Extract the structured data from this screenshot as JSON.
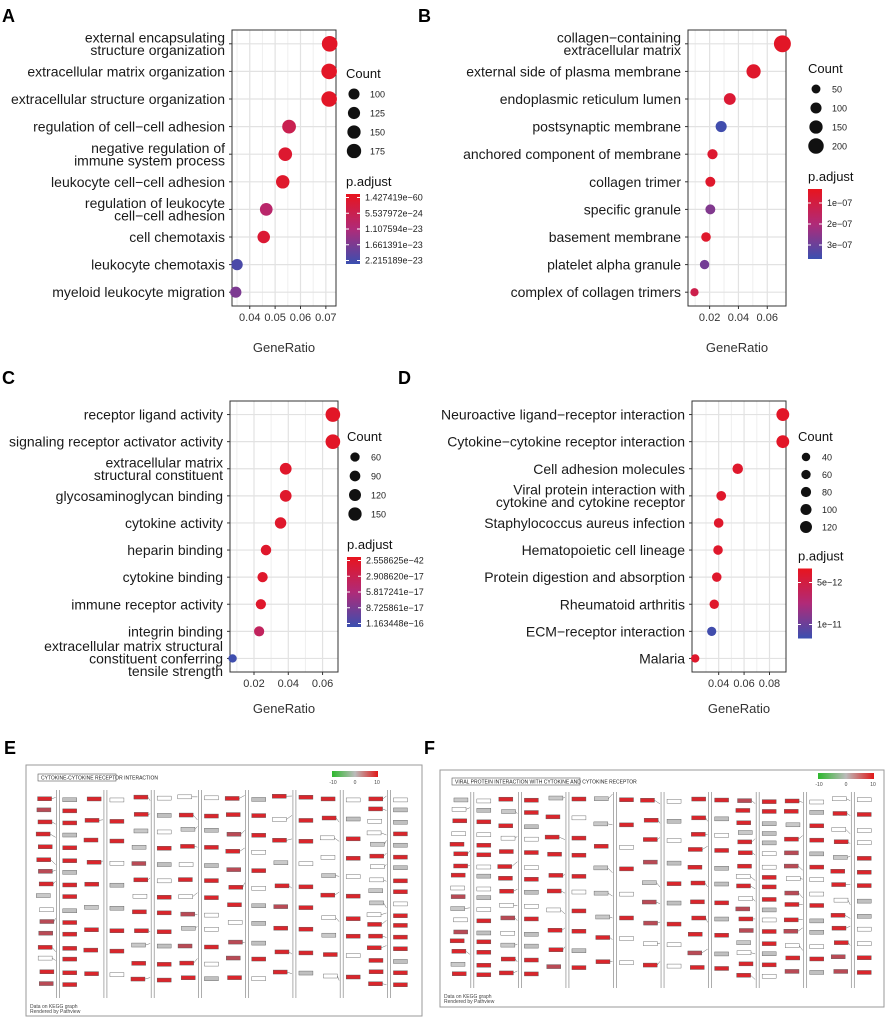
{
  "panels": [
    {
      "label": "A"
    },
    {
      "label": "B"
    },
    {
      "label": "C"
    },
    {
      "label": "D"
    },
    {
      "label": "E"
    },
    {
      "label": "F"
    }
  ],
  "chart_data": [
    {
      "panel": "A",
      "type": "scatter",
      "subtype": "dotplot",
      "xlabel": "GeneRatio",
      "xlim": [
        0.033,
        0.074
      ],
      "xticks": [
        0.04,
        0.05,
        0.06,
        0.07
      ],
      "xtick_labels": [
        "0.04",
        "0.05",
        "0.06",
        "0.07"
      ],
      "terms": [
        {
          "label": [
            "external encapsulating",
            "structure organization"
          ],
          "x": 0.0715,
          "count": 186,
          "p": 0.05
        },
        {
          "label": [
            "extracellular matrix organization"
          ],
          "x": 0.0713,
          "count": 185,
          "p": 0.05
        },
        {
          "label": [
            "extracellular structure organization"
          ],
          "x": 0.0713,
          "count": 185,
          "p": 0.05
        },
        {
          "label": [
            "regulation of cell−cell adhesion"
          ],
          "x": 0.0555,
          "count": 145,
          "p": 0.28
        },
        {
          "label": [
            "negative regulation of",
            "immune system process"
          ],
          "x": 0.054,
          "count": 142,
          "p": 0.1
        },
        {
          "label": [
            "leukocyte cell−cell adhesion"
          ],
          "x": 0.053,
          "count": 139,
          "p": 0.08
        },
        {
          "label": [
            "regulation of leukocyte",
            "cell−cell adhesion"
          ],
          "x": 0.0465,
          "count": 122,
          "p": 0.42
        },
        {
          "label": [
            "cell chemotaxis"
          ],
          "x": 0.0455,
          "count": 118,
          "p": 0.12
        },
        {
          "label": [
            "leukocyte chemotaxis"
          ],
          "x": 0.035,
          "count": 92,
          "p": 0.93
        },
        {
          "label": [
            "myeloid leukocyte migration"
          ],
          "x": 0.0345,
          "count": 90,
          "p": 0.72
        }
      ],
      "legend_size": {
        "title": "Count",
        "values": [
          100,
          125,
          150,
          175
        ],
        "labels": [
          "100",
          "125",
          "150",
          "175"
        ]
      },
      "legend_color": {
        "title": "p.adjust",
        "labels": [
          "1.427419e−60",
          "5.537972e−24",
          "1.107594e−23",
          "1.661391e−23",
          "2.215189e−23"
        ]
      }
    },
    {
      "panel": "B",
      "type": "scatter",
      "subtype": "dotplot",
      "xlabel": "GeneRatio",
      "xlim": [
        0.005,
        0.073
      ],
      "xticks": [
        0.02,
        0.04,
        0.06
      ],
      "xtick_labels": [
        "0.02",
        "0.04",
        "0.06"
      ],
      "terms": [
        {
          "label": [
            "collagen−containing",
            "extracellular matrix"
          ],
          "x": 0.0705,
          "count": 215,
          "p": 0.05
        },
        {
          "label": [
            "external side of plasma membrane"
          ],
          "x": 0.0505,
          "count": 155,
          "p": 0.08
        },
        {
          "label": [
            "endoplasmic reticulum lumen"
          ],
          "x": 0.034,
          "count": 103,
          "p": 0.12
        },
        {
          "label": [
            "postsynaptic membrane"
          ],
          "x": 0.028,
          "count": 87,
          "p": 0.97
        },
        {
          "label": [
            "anchored component of membrane"
          ],
          "x": 0.022,
          "count": 68,
          "p": 0.1
        },
        {
          "label": [
            "collagen trimer"
          ],
          "x": 0.0205,
          "count": 63,
          "p": 0.08
        },
        {
          "label": [
            "specific granule"
          ],
          "x": 0.0205,
          "count": 62,
          "p": 0.7
        },
        {
          "label": [
            "basement membrane"
          ],
          "x": 0.0175,
          "count": 55,
          "p": 0.08
        },
        {
          "label": [
            "platelet alpha granule"
          ],
          "x": 0.0165,
          "count": 50,
          "p": 0.76
        },
        {
          "label": [
            "complex of collagen trimers"
          ],
          "x": 0.0095,
          "count": 25,
          "p": 0.25
        }
      ],
      "legend_size": {
        "title": "Count",
        "values": [
          50,
          100,
          150,
          200
        ],
        "labels": [
          "50",
          "100",
          "150",
          "200"
        ]
      },
      "legend_color": {
        "title": "p.adjust",
        "labels": [
          "1e−07",
          "2e−07",
          "3e−07"
        ]
      }
    },
    {
      "panel": "C",
      "type": "scatter",
      "subtype": "dotplot",
      "xlabel": "GeneRatio",
      "xlim": [
        0.006,
        0.069
      ],
      "xticks": [
        0.02,
        0.04,
        0.06
      ],
      "xtick_labels": [
        "0.02",
        "0.04",
        "0.06"
      ],
      "terms": [
        {
          "label": [
            "receptor ligand activity"
          ],
          "x": 0.066,
          "count": 165,
          "p": 0.05
        },
        {
          "label": [
            "signaling receptor activator activity"
          ],
          "x": 0.066,
          "count": 165,
          "p": 0.05
        },
        {
          "label": [
            "extracellular matrix",
            "structural constituent"
          ],
          "x": 0.0385,
          "count": 102,
          "p": 0.07
        },
        {
          "label": [
            "glycosaminoglycan binding"
          ],
          "x": 0.0385,
          "count": 101,
          "p": 0.08
        },
        {
          "label": [
            "cytokine activity"
          ],
          "x": 0.0355,
          "count": 95,
          "p": 0.08
        },
        {
          "label": [
            "heparin binding"
          ],
          "x": 0.027,
          "count": 75,
          "p": 0.08
        },
        {
          "label": [
            "cytokine binding"
          ],
          "x": 0.025,
          "count": 70,
          "p": 0.08
        },
        {
          "label": [
            "immune receptor activity"
          ],
          "x": 0.024,
          "count": 68,
          "p": 0.08
        },
        {
          "label": [
            "integrin binding"
          ],
          "x": 0.023,
          "count": 67,
          "p": 0.35
        },
        {
          "label": [
            "extracellular matrix structural",
            "constituent conferring",
            "tensile strength"
          ],
          "x": 0.0075,
          "count": 28,
          "p": 0.98
        }
      ],
      "legend_size": {
        "title": "Count",
        "values": [
          60,
          90,
          120,
          150
        ],
        "labels": [
          "60",
          "90",
          "120",
          "150"
        ]
      },
      "legend_color": {
        "title": "p.adjust",
        "labels": [
          "2.558625e−42",
          "2.908620e−17",
          "5.817241e−17",
          "8.725861e−17",
          "1.163448e−16"
        ]
      }
    },
    {
      "panel": "D",
      "type": "scatter",
      "subtype": "dotplot",
      "xlabel": "GeneRatio",
      "xlim": [
        0.019,
        0.093
      ],
      "xticks": [
        0.04,
        0.06,
        0.08
      ],
      "xtick_labels": [
        "0.04",
        "0.06",
        "0.08"
      ],
      "terms": [
        {
          "label": [
            "Neuroactive ligand−receptor interaction"
          ],
          "x": 0.0905,
          "count": 125,
          "p": 0.05
        },
        {
          "label": [
            "Cytokine−cytokine receptor interaction"
          ],
          "x": 0.0905,
          "count": 125,
          "p": 0.05
        },
        {
          "label": [
            "Cell adhesion molecules"
          ],
          "x": 0.055,
          "count": 75,
          "p": 0.08
        },
        {
          "label": [
            "Viral protein interaction with",
            "cytokine and cytokine receptor"
          ],
          "x": 0.042,
          "count": 58,
          "p": 0.08
        },
        {
          "label": [
            "Staphylococcus aureus infection"
          ],
          "x": 0.04,
          "count": 55,
          "p": 0.08
        },
        {
          "label": [
            "Hematopoietic cell lineage"
          ],
          "x": 0.0395,
          "count": 54,
          "p": 0.08
        },
        {
          "label": [
            "Protein digestion and absorption"
          ],
          "x": 0.0385,
          "count": 52,
          "p": 0.08
        },
        {
          "label": [
            "Rheumatoid arthritis"
          ],
          "x": 0.0365,
          "count": 50,
          "p": 0.08
        },
        {
          "label": [
            "ECM−receptor interaction"
          ],
          "x": 0.0345,
          "count": 47,
          "p": 0.97
        },
        {
          "label": [
            "Malaria"
          ],
          "x": 0.0215,
          "count": 28,
          "p": 0.08
        }
      ],
      "legend_size": {
        "title": "Count",
        "values": [
          40,
          60,
          80,
          100,
          120
        ],
        "labels": [
          "40",
          "60",
          "80",
          "100",
          "120"
        ]
      },
      "legend_color": {
        "title": "p.adjust",
        "labels": [
          "5e−12",
          "1e−11"
        ]
      }
    }
  ],
  "kegg": [
    {
      "panel": "E",
      "title": "CYTOKINE-CYTOKINE RECEPTOR INTERACTION",
      "scale": [
        "-10",
        "0",
        "10"
      ],
      "footer": [
        "Data on KEGG graph",
        "Rendered by Pathview"
      ]
    },
    {
      "panel": "F",
      "title": "VIRAL PROTEIN INTERACTION WITH CYTOKINE AND CYTOKINE RECEPTOR",
      "scale": [
        "-10",
        "0",
        "10"
      ],
      "footer": [
        "Data on KEGG graph",
        "Rendered by Pathview"
      ]
    }
  ]
}
